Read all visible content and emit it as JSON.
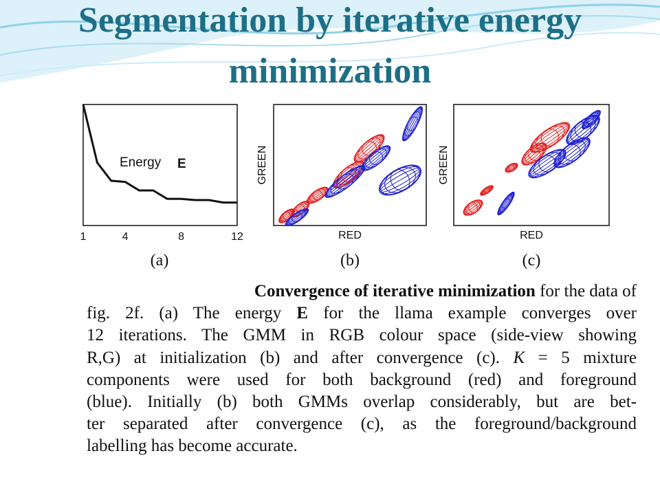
{
  "slide": {
    "title_line_1": "Segmentation by iterative energy",
    "title_line_2": "minimization",
    "title_color": "#1d6f86"
  },
  "figure": {
    "panels": [
      {
        "id": "a",
        "sublabel": "(a)",
        "chart_data": {
          "type": "line",
          "annotation": "Energy",
          "annotation_symbol": "E",
          "x_ticks": [
            "1",
            "4",
            "8",
            "12"
          ],
          "xlim": [
            1,
            12
          ],
          "x": [
            1,
            2,
            3,
            4,
            5,
            6,
            7,
            8,
            9,
            10,
            11,
            12
          ],
          "y": [
            1.0,
            0.52,
            0.37,
            0.36,
            0.29,
            0.29,
            0.22,
            0.22,
            0.21,
            0.21,
            0.19,
            0.19
          ],
          "ylim": [
            0,
            1
          ],
          "line_color": "#111111"
        }
      },
      {
        "id": "b",
        "sublabel": "(b)",
        "xlabel": "RED",
        "ylabel": "GREEN",
        "series": [
          {
            "color": "#e02020"
          },
          {
            "color": "#2020d0"
          }
        ]
      },
      {
        "id": "c",
        "sublabel": "(c)",
        "xlabel": "RED",
        "ylabel": "GREEN",
        "series": [
          {
            "color": "#e02020"
          },
          {
            "color": "#2020d0"
          }
        ]
      }
    ]
  },
  "caption": {
    "lines": [
      [
        "",
        {
          "b": "Convergence of iterative minimization"
        },
        " for the data of"
      ],
      [
        "fig.  2f.  (a) The energy ",
        {
          "b": "E"
        },
        " for the llama example converges over"
      ],
      [
        "12 iterations.  The GMM in RGB colour space (side-view showing"
      ],
      [
        "R,G) at initialization (b) and after convergence (c).  ",
        {
          "i": "K"
        },
        " = 5 mixture"
      ],
      [
        "components were used for both background (red) and foreground"
      ],
      [
        "(blue).  Initially (b) both GMMs overlap considerably, but are bet-"
      ],
      [
        "ter separated after convergence (c), as the foreground/background"
      ],
      [
        "labelling has become accurate."
      ]
    ]
  }
}
